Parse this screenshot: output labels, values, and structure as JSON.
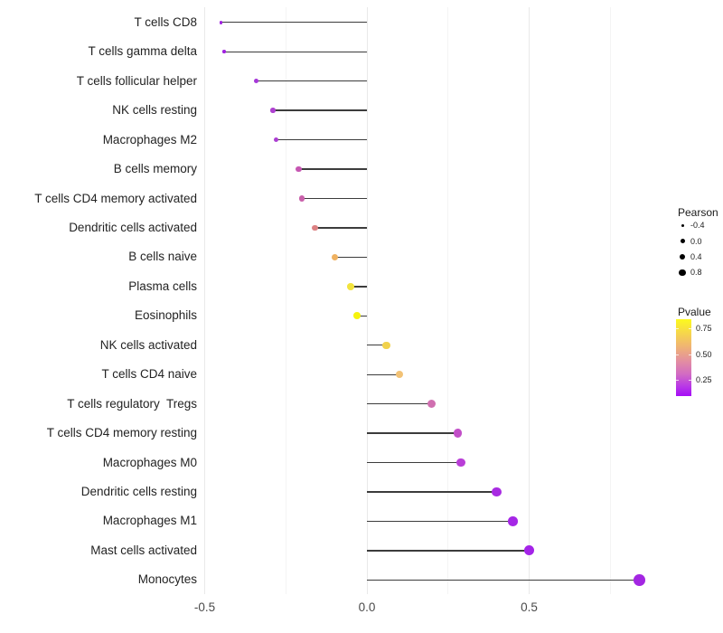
{
  "chart_data": {
    "type": "scatter",
    "subtype": "lollipop",
    "title": "",
    "xlabel": "",
    "ylabel": "",
    "xlim": [
      -0.52,
      0.9
    ],
    "grid": "vertical-only",
    "x_ticks": [
      {
        "value": -0.5,
        "label": "-0.5"
      },
      {
        "value": 0.0,
        "label": "0.0"
      },
      {
        "value": 0.5,
        "label": "0.5"
      }
    ],
    "x_minor_gridlines": [
      -0.25,
      0.25,
      0.75
    ],
    "stem_color": "#3c3c3c",
    "points": [
      {
        "label": "T cells CD8",
        "pearson": -0.45,
        "color": "#A021E0"
      },
      {
        "label": "T cells gamma delta",
        "pearson": -0.44,
        "color": "#A122E0"
      },
      {
        "label": "T cells follicular helper",
        "pearson": -0.34,
        "color": "#A637D8"
      },
      {
        "label": "NK cells resting",
        "pearson": -0.29,
        "color": "#AE40D0"
      },
      {
        "label": "Macrophages M2",
        "pearson": -0.28,
        "color": "#AC3ED2"
      },
      {
        "label": "B cells memory",
        "pearson": -0.21,
        "color": "#C657B2"
      },
      {
        "label": "T cells CD4 memory activated",
        "pearson": -0.2,
        "color": "#C960AA"
      },
      {
        "label": "Dendritic cells activated",
        "pearson": -0.16,
        "color": "#DC8183"
      },
      {
        "label": "B cells naive",
        "pearson": -0.1,
        "color": "#EFB160"
      },
      {
        "label": "Plasma cells",
        "pearson": -0.05,
        "color": "#F2E33E"
      },
      {
        "label": "Eosinophils",
        "pearson": -0.03,
        "color": "#F6F30D"
      },
      {
        "label": "NK cells activated",
        "pearson": 0.06,
        "color": "#F1D24C"
      },
      {
        "label": "T cells CD4 naive",
        "pearson": 0.1,
        "color": "#F2C276"
      },
      {
        "label": "T cells regulatory  Tregs",
        "pearson": 0.2,
        "color": "#D06FB0"
      },
      {
        "label": "T cells CD4 memory resting",
        "pearson": 0.28,
        "color": "#C24FC8"
      },
      {
        "label": "Macrophages M0",
        "pearson": 0.29,
        "color": "#B93ED7"
      },
      {
        "label": "Dendritic cells resting",
        "pearson": 0.4,
        "color": "#A82BE2"
      },
      {
        "label": "Macrophages M1",
        "pearson": 0.45,
        "color": "#A527E6"
      },
      {
        "label": "Mast cells activated",
        "pearson": 0.5,
        "color": "#A424E8"
      },
      {
        "label": "Monocytes",
        "pearson": 0.84,
        "color": "#A326E2"
      }
    ],
    "legends": {
      "size": {
        "title": "Pearson",
        "entries": [
          {
            "label": "-0.4",
            "value": -0.4
          },
          {
            "label": "0.0",
            "value": 0.0
          },
          {
            "label": "0.4",
            "value": 0.4
          },
          {
            "label": "0.8",
            "value": 0.8
          }
        ],
        "key_color": "#000000"
      },
      "color": {
        "title": "Pvalue",
        "entries": [
          {
            "label": "0.75"
          },
          {
            "label": "0.50"
          },
          {
            "label": "0.25"
          }
        ],
        "gradient_top_to_bottom": [
          "#FCFA1E",
          "#F7DC44",
          "#F0B572",
          "#E28DA2",
          "#D16AC4",
          "#B736E8",
          "#A50DF6"
        ]
      }
    }
  }
}
